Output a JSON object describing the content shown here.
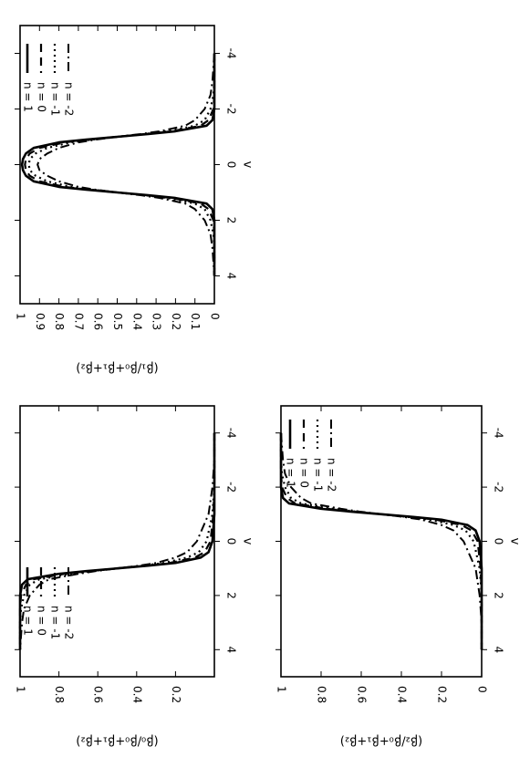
{
  "chart_data": [
    {
      "type": "line",
      "id": "p1",
      "ylabel": "(β₁/β₀+β₁+β₂)",
      "xlabel": "v",
      "xlim": [
        -5,
        5
      ],
      "ylim": [
        0,
        1
      ],
      "xticks": [
        "-4",
        "-2",
        "0",
        "2",
        "4"
      ],
      "yticks": [
        "0",
        "0.1",
        "0.2",
        "0.3",
        "0.4",
        "0.5",
        "0.6",
        "0.7",
        "0.8",
        "0.9",
        "1"
      ],
      "legend_position": "top-left",
      "x": [
        -4.0,
        -3.0,
        -2.5,
        -2.0,
        -1.6,
        -1.4,
        -1.2,
        -1.1,
        -1.0,
        -0.9,
        -0.8,
        -0.6,
        -0.4,
        -0.2,
        0.0,
        0.2,
        0.4,
        0.6,
        0.8,
        0.9,
        1.0,
        1.1,
        1.2,
        1.4,
        1.6,
        2.0,
        2.5,
        3.0,
        4.0
      ],
      "series": [
        {
          "name": "n = 1",
          "style": "solid",
          "values": [
            0.0,
            0.0,
            0.0,
            0.0,
            0.01,
            0.04,
            0.2,
            0.34,
            0.5,
            0.66,
            0.8,
            0.93,
            0.97,
            0.985,
            0.99,
            0.985,
            0.97,
            0.93,
            0.8,
            0.66,
            0.5,
            0.34,
            0.2,
            0.04,
            0.01,
            0.0,
            0.0,
            0.0,
            0.0
          ]
        },
        {
          "name": "n = 0",
          "style": "dashed",
          "values": [
            0.0,
            0.0,
            0.0,
            0.005,
            0.03,
            0.07,
            0.22,
            0.35,
            0.5,
            0.65,
            0.77,
            0.9,
            0.95,
            0.97,
            0.975,
            0.97,
            0.95,
            0.9,
            0.77,
            0.65,
            0.5,
            0.35,
            0.22,
            0.07,
            0.03,
            0.005,
            0.0,
            0.0,
            0.0
          ]
        },
        {
          "name": "n = -1",
          "style": "dotted",
          "values": [
            0.0,
            0.0,
            0.005,
            0.02,
            0.05,
            0.1,
            0.24,
            0.36,
            0.5,
            0.63,
            0.74,
            0.86,
            0.92,
            0.95,
            0.955,
            0.95,
            0.92,
            0.86,
            0.74,
            0.63,
            0.5,
            0.36,
            0.24,
            0.1,
            0.05,
            0.02,
            0.005,
            0.0,
            0.0
          ]
        },
        {
          "name": "n = -2",
          "style": "dash-dot",
          "values": [
            0.0,
            0.01,
            0.02,
            0.05,
            0.1,
            0.15,
            0.28,
            0.38,
            0.5,
            0.61,
            0.7,
            0.8,
            0.86,
            0.9,
            0.91,
            0.9,
            0.86,
            0.8,
            0.7,
            0.61,
            0.5,
            0.38,
            0.28,
            0.15,
            0.1,
            0.05,
            0.02,
            0.01,
            0.0
          ]
        }
      ]
    },
    {
      "type": "line",
      "id": "p0",
      "ylabel": "(β₀/β₀+β₁+β₂)",
      "xlabel": "v",
      "xlim": [
        -5,
        5
      ],
      "ylim": [
        0,
        1
      ],
      "xticks": [
        "-4",
        "-2",
        "0",
        "2",
        "4"
      ],
      "yticks": [
        "0.2",
        "0.4",
        "0.6",
        "0.8",
        "1"
      ],
      "legend_position": "top-left",
      "x": [
        -4.0,
        -3.0,
        -2.0,
        -1.0,
        0.0,
        0.4,
        0.6,
        0.8,
        0.9,
        1.0,
        1.1,
        1.2,
        1.4,
        1.6,
        2.0,
        2.5,
        3.0,
        4.0
      ],
      "series": [
        {
          "name": "n = 1",
          "style": "solid",
          "values": [
            0.0,
            0.0,
            0.0,
            0.0,
            0.01,
            0.03,
            0.07,
            0.2,
            0.34,
            0.5,
            0.66,
            0.8,
            0.96,
            0.99,
            1.0,
            1.0,
            1.0,
            1.0
          ]
        },
        {
          "name": "n = 0",
          "style": "dashed",
          "values": [
            0.0,
            0.0,
            0.0,
            0.005,
            0.02,
            0.05,
            0.1,
            0.23,
            0.35,
            0.5,
            0.65,
            0.77,
            0.93,
            0.97,
            0.995,
            1.0,
            1.0,
            1.0
          ]
        },
        {
          "name": "n = -1",
          "style": "dotted",
          "values": [
            0.0,
            0.0,
            0.0,
            0.01,
            0.04,
            0.08,
            0.14,
            0.26,
            0.37,
            0.5,
            0.63,
            0.74,
            0.9,
            0.95,
            0.98,
            0.995,
            1.0,
            1.0
          ]
        },
        {
          "name": "n = -2",
          "style": "dash-dot",
          "values": [
            0.0,
            0.0,
            0.01,
            0.03,
            0.09,
            0.14,
            0.2,
            0.3,
            0.39,
            0.5,
            0.61,
            0.7,
            0.85,
            0.9,
            0.95,
            0.98,
            0.99,
            1.0
          ]
        }
      ]
    },
    {
      "type": "line",
      "id": "p2",
      "ylabel": "(β₂/β₀+β₁+β₂)",
      "xlabel": "v",
      "xlim": [
        -5,
        5
      ],
      "ylim": [
        0,
        1
      ],
      "xticks": [
        "-4",
        "-2",
        "0",
        "2",
        "4"
      ],
      "yticks": [
        "0",
        "0.2",
        "0.4",
        "0.6",
        "0.8",
        "1"
      ],
      "legend_position": "top-right",
      "x": [
        -4.0,
        -3.0,
        -2.5,
        -2.0,
        -1.6,
        -1.4,
        -1.2,
        -1.1,
        -1.0,
        -0.9,
        -0.8,
        -0.6,
        -0.4,
        0.0,
        1.0,
        2.0,
        3.0,
        4.0
      ],
      "series": [
        {
          "name": "n = 1",
          "style": "solid",
          "values": [
            1.0,
            1.0,
            1.0,
            1.0,
            0.99,
            0.96,
            0.8,
            0.66,
            0.5,
            0.34,
            0.2,
            0.07,
            0.03,
            0.01,
            0.0,
            0.0,
            0.0,
            0.0
          ]
        },
        {
          "name": "n = 0",
          "style": "dashed",
          "values": [
            1.0,
            1.0,
            1.0,
            0.995,
            0.97,
            0.93,
            0.77,
            0.65,
            0.5,
            0.35,
            0.23,
            0.1,
            0.05,
            0.02,
            0.005,
            0.0,
            0.0,
            0.0
          ]
        },
        {
          "name": "n = -1",
          "style": "dotted",
          "values": [
            1.0,
            1.0,
            0.995,
            0.98,
            0.95,
            0.9,
            0.74,
            0.63,
            0.5,
            0.37,
            0.26,
            0.14,
            0.08,
            0.04,
            0.01,
            0.0,
            0.0,
            0.0
          ]
        },
        {
          "name": "n = -2",
          "style": "dash-dot",
          "values": [
            1.0,
            0.99,
            0.98,
            0.95,
            0.9,
            0.85,
            0.7,
            0.61,
            0.5,
            0.39,
            0.3,
            0.2,
            0.14,
            0.09,
            0.03,
            0.01,
            0.0,
            0.0
          ]
        }
      ]
    }
  ]
}
